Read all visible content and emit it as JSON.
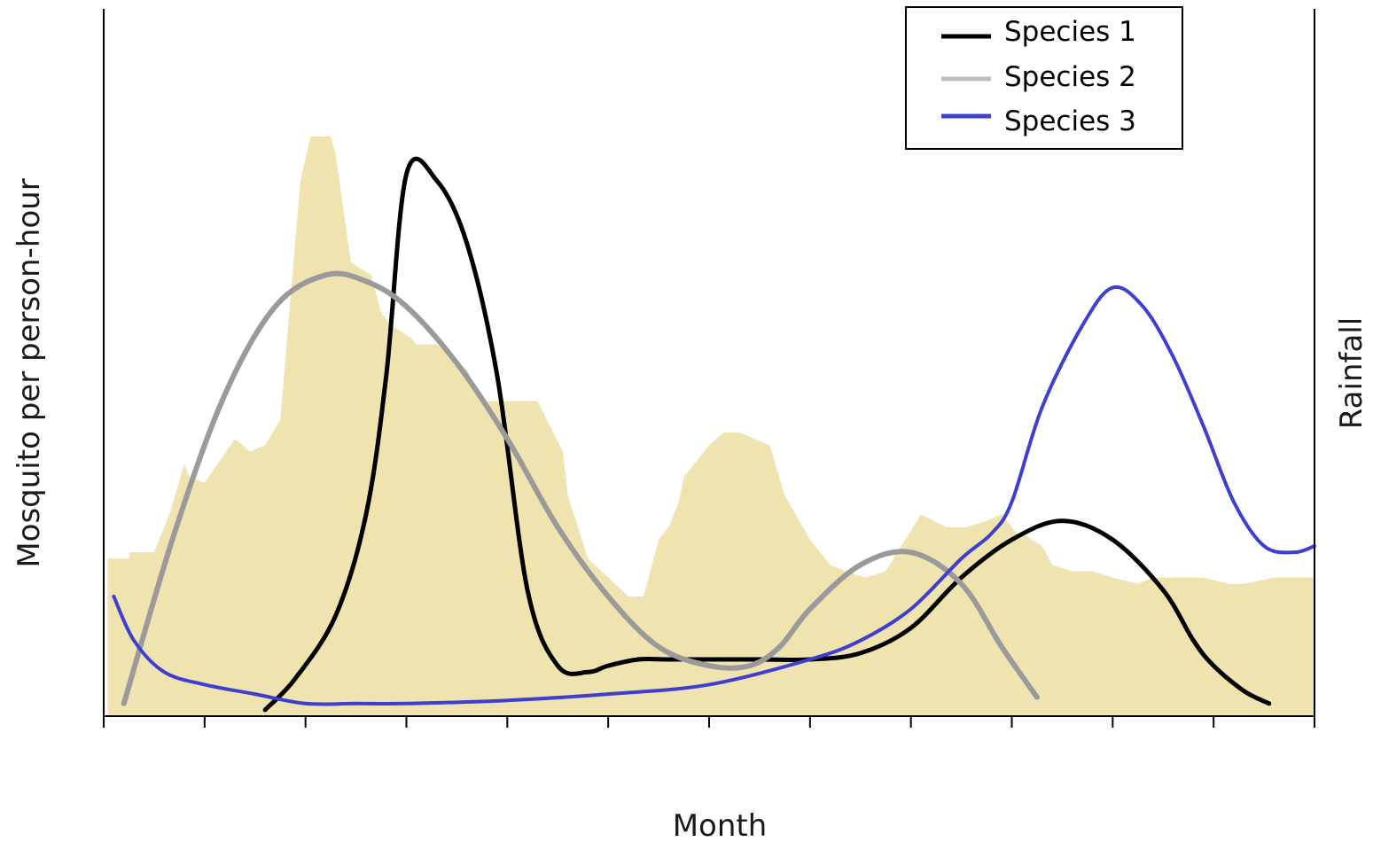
{
  "chart_data": {
    "type": "line",
    "title": "",
    "xlabel": "Month",
    "ylabel": "Mosquito per person-hour",
    "y2label": "Rainfall",
    "xlim": [
      0,
      12
    ],
    "ylim": [
      0,
      100
    ],
    "y2lim": [
      0,
      100
    ],
    "x_ticks": [
      0,
      1,
      2,
      3,
      4,
      5,
      6,
      7,
      8,
      9,
      10,
      11,
      12
    ],
    "grid": false,
    "legend_position": "top-right",
    "rainfall": {
      "color": "#efe3b0",
      "x": [
        0.04,
        0.25,
        0.26,
        0.5,
        0.65,
        0.8,
        0.85,
        1.0,
        1.3,
        1.45,
        1.6,
        1.75,
        1.95,
        2.05,
        2.25,
        2.3,
        2.45,
        2.65,
        2.75,
        2.85,
        3.05,
        3.1,
        3.3,
        3.6,
        3.75,
        4.0,
        4.3,
        4.55,
        4.6,
        4.8,
        5.2,
        5.35,
        5.5,
        5.6,
        5.7,
        5.75,
        5.9,
        6.0,
        6.15,
        6.3,
        6.6,
        6.75,
        7.0,
        7.2,
        7.35,
        7.55,
        7.75,
        8.1,
        8.35,
        8.55,
        8.75,
        8.9,
        9.05,
        9.1,
        9.3,
        9.4,
        9.6,
        9.8,
        10.0,
        10.25,
        10.4,
        10.7,
        10.9,
        11.15,
        11.3,
        11.6,
        11.85,
        12.0
      ],
      "values": [
        25,
        25,
        26,
        26,
        32,
        40,
        38,
        37,
        44,
        42,
        43,
        47,
        85,
        92,
        92,
        89,
        72,
        70,
        64,
        62,
        60,
        59,
        59,
        55,
        50,
        50,
        50,
        42,
        35,
        25,
        19,
        19,
        28,
        30,
        34,
        38,
        41,
        43,
        45,
        45,
        43,
        35,
        28,
        24,
        23,
        22,
        23,
        32,
        30,
        30,
        31,
        32,
        29,
        29,
        27,
        24,
        23,
        23,
        22,
        21,
        22,
        22,
        22,
        21,
        21,
        22,
        22,
        22
      ],
      "baseline": 0
    },
    "series": [
      {
        "name": "Species 1",
        "color": "#000000",
        "x": [
          1.6,
          1.9,
          2.3,
          2.6,
          2.8,
          3.0,
          3.3,
          3.6,
          3.9,
          4.2,
          4.5,
          4.8,
          5.0,
          5.3,
          5.6,
          6.0,
          6.5,
          7.0,
          7.5,
          8.0,
          8.5,
          9.0,
          9.5,
          10.0,
          10.5,
          10.8,
          11.0,
          11.3,
          11.55
        ],
        "values": [
          1,
          6,
          16,
          32,
          54,
          86,
          85,
          75,
          54,
          20,
          8,
          7,
          8,
          9,
          9,
          9,
          9,
          9,
          10,
          14,
          22,
          28,
          31,
          28,
          20,
          12,
          8,
          4,
          2
        ]
      },
      {
        "name": "Species 2",
        "color": "#9a9a9a",
        "x": [
          0.2,
          0.7,
          1.2,
          1.7,
          2.2,
          2.6,
          3.0,
          3.5,
          4.0,
          4.5,
          5.0,
          5.5,
          6.0,
          6.4,
          6.7,
          7.0,
          7.5,
          8.0,
          8.5,
          8.9,
          9.25
        ],
        "values": [
          2,
          29,
          51,
          65,
          70,
          69,
          65,
          56,
          44,
          30,
          19,
          11,
          8,
          8,
          11,
          17,
          24,
          26,
          21,
          11,
          3
        ]
      },
      {
        "name": "Species 3",
        "color": "#3f3fcf",
        "x": [
          0.1,
          0.3,
          0.6,
          1.0,
          1.5,
          2.0,
          2.5,
          3.0,
          4.0,
          5.0,
          6.0,
          7.0,
          7.5,
          8.0,
          8.5,
          8.8,
          9.0,
          9.3,
          9.7,
          10.0,
          10.3,
          10.6,
          10.9,
          11.2,
          11.5,
          11.8,
          12.0
        ],
        "values": [
          19,
          12,
          7,
          5,
          3.5,
          2,
          2,
          2,
          2.5,
          3.5,
          5,
          9,
          12,
          17,
          25,
          29,
          34,
          49,
          62,
          68,
          65,
          57,
          46,
          34,
          27,
          26,
          27
        ]
      }
    ]
  }
}
